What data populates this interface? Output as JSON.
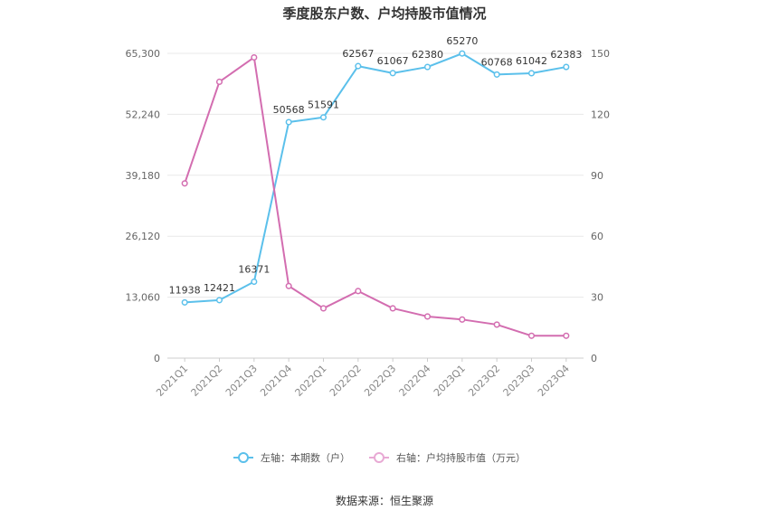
{
  "chart_data": {
    "type": "line",
    "title": "季度股东户数、户均持股市值情况",
    "categories": [
      "2021Q1",
      "2021Q2",
      "2021Q3",
      "2021Q4",
      "2022Q1",
      "2022Q2",
      "2022Q3",
      "2022Q4",
      "2023Q1",
      "2023Q2",
      "2023Q3",
      "2023Q4"
    ],
    "left_axis": {
      "ylim": [
        0,
        65300
      ],
      "ticks": [
        "0",
        "13,060",
        "26,120",
        "39,180",
        "52,240",
        "65,300"
      ]
    },
    "right_axis": {
      "ylim": [
        0,
        150
      ],
      "ticks": [
        "0",
        "30",
        "60",
        "90",
        "120",
        "150"
      ]
    },
    "series": [
      {
        "name": "左轴：本期数（户）",
        "axis": "left",
        "color": "#5bc0eb",
        "values": [
          11938,
          12421,
          16371,
          50568,
          51591,
          62567,
          61067,
          62380,
          65270,
          60768,
          61042,
          62383
        ],
        "labels": [
          "11938",
          "12421",
          "16371",
          "50568",
          "51591",
          "62567",
          "61067",
          "62380",
          "65270",
          "60768",
          "61042",
          "62383"
        ]
      },
      {
        "name": "右轴：户均持股市值（万元）",
        "axis": "right",
        "color": "#d36db0",
        "values": [
          86,
          136,
          148,
          35.5,
          24.5,
          33,
          24.5,
          20.5,
          19,
          16.5,
          11,
          11
        ]
      }
    ],
    "grid": true,
    "legend_position": "bottom"
  },
  "footer": {
    "source": "数据来源：恒生聚源"
  }
}
